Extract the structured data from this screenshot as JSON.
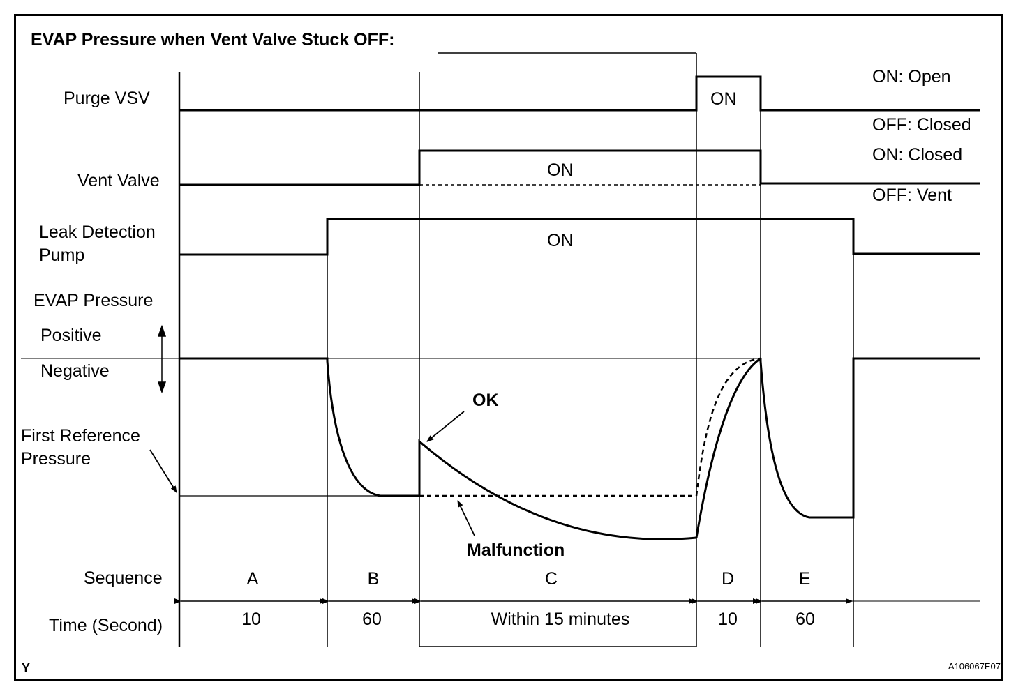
{
  "title": "EVAP Pressure when Vent Valve Stuck OFF:",
  "signals": {
    "purge_vsv": {
      "label": "Purge VSV",
      "on_text": "ON",
      "on_state": "ON: Open",
      "off_state": "OFF: Closed"
    },
    "vent_valve": {
      "label": "Vent Valve",
      "on_text": "ON",
      "on_state": "ON: Closed",
      "off_state": "OFF: Vent"
    },
    "leak_pump": {
      "label_line1": "Leak Detection",
      "label_line2": "Pump",
      "on_text": "ON"
    }
  },
  "pressure": {
    "label": "EVAP Pressure",
    "positive": "Positive",
    "negative": "Negative",
    "first_ref_line1": "First Reference",
    "first_ref_line2": "Pressure",
    "ok_label": "OK",
    "malfunction_label": "Malfunction"
  },
  "sequence": {
    "label": "Sequence",
    "phases": [
      "A",
      "B",
      "C",
      "D",
      "E"
    ]
  },
  "time": {
    "label": "Time (Second)",
    "values": [
      "10",
      "60",
      "Within 15 minutes",
      "10",
      "60"
    ]
  },
  "footer": {
    "left_mark": "Y",
    "figure_id": "A106067E07"
  },
  "colors": {
    "line": "#000000",
    "background": "#ffffff"
  }
}
